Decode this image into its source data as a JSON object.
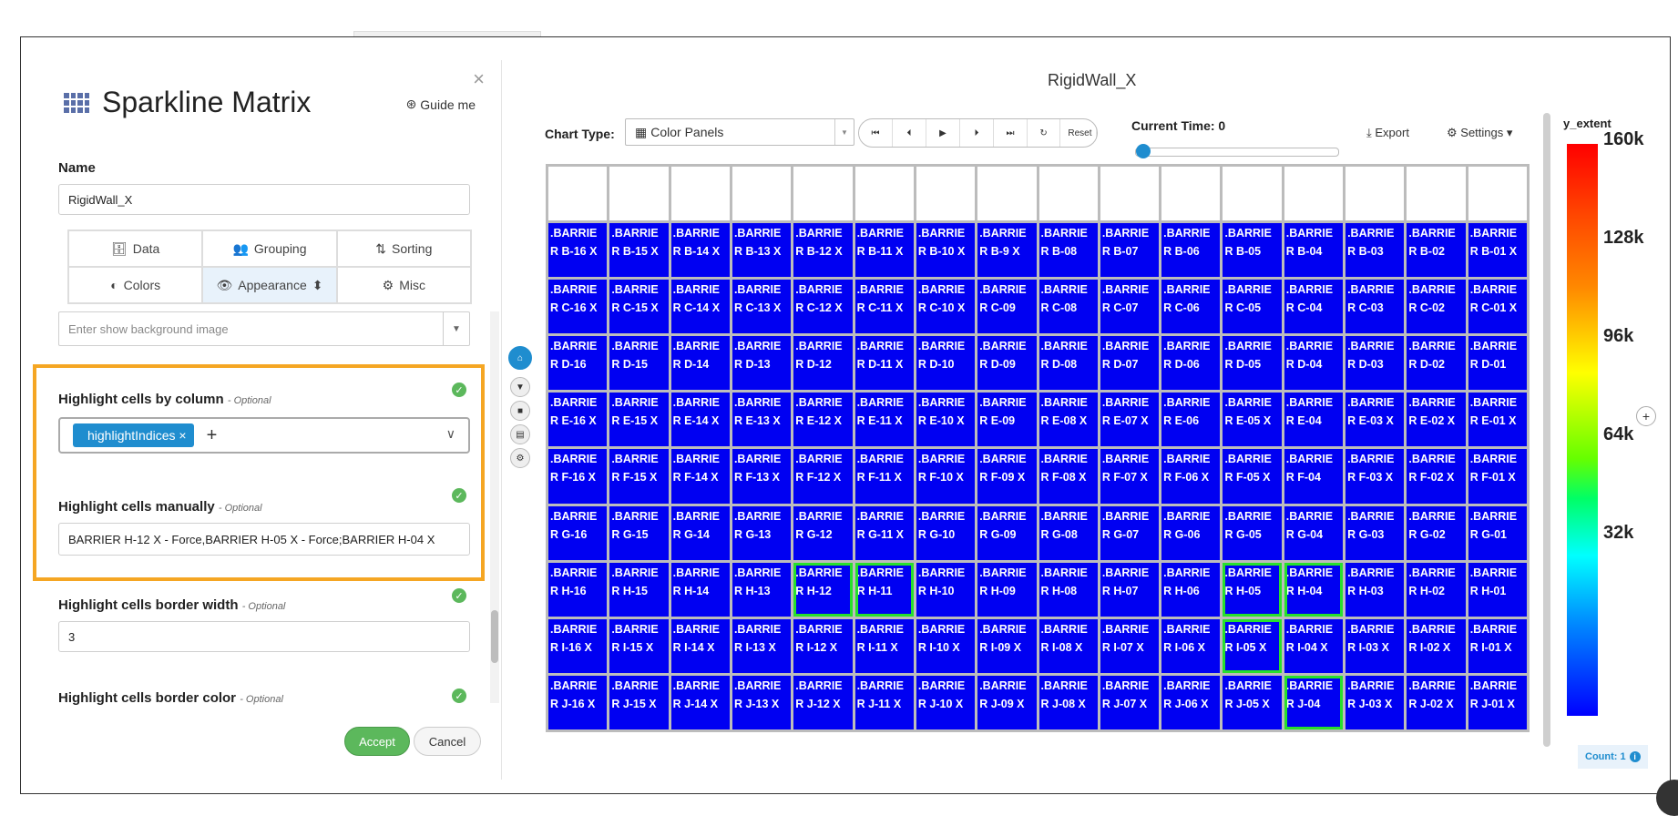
{
  "panel": {
    "title": "Sparkline Matrix",
    "guide_label": "Guide me",
    "close_glyph": "×",
    "name_label": "Name",
    "name_value": "RigidWall_X",
    "tabs": [
      {
        "label": "Data",
        "icon": "database-icon",
        "glyph": "🗄"
      },
      {
        "label": "Grouping",
        "icon": "users-icon",
        "glyph": "👥"
      },
      {
        "label": "Sorting",
        "icon": "sort-icon",
        "glyph": "⇅"
      },
      {
        "label": "Colors",
        "icon": "contrast-icon",
        "glyph": "◐"
      },
      {
        "label": "Appearance",
        "icon": "eye-icon",
        "glyph": "👁"
      },
      {
        "label": "Misc",
        "icon": "gear-icon",
        "glyph": "⚙"
      }
    ],
    "bg_image_placeholder": "Enter show background image",
    "hl_column_label": "Highlight cells by column",
    "hl_column_tag": "highlightIndices",
    "hl_manual_label": "Highlight cells manually",
    "hl_manual_value": "BARRIER H-12 X - Force,BARRIER H-05 X - Force;BARRIER H-04 X",
    "border_width_label": "Highlight cells border width",
    "border_width_value": "3",
    "border_color_label": "Highlight cells border color",
    "optional": "- Optional",
    "accept_label": "Accept",
    "cancel_label": "Cancel"
  },
  "chart": {
    "title": "RigidWall_X",
    "chart_type_label": "Chart Type:",
    "chart_type_value": "Color Panels",
    "reset_label": "Reset",
    "current_time_label": "Current Time: 0",
    "current_time_fraction": 0,
    "export_label": "Export",
    "settings_label": "Settings",
    "cell_fill_color": "#0000f2",
    "highlight_color": "#27e02c",
    "rows": [
      {
        "row": "B",
        "cells": [
          ".BARRIE|R B-16 X",
          ".BARRIE|R B-15 X",
          ".BARRIE|R B-14 X",
          ".BARRIE|R B-13 X",
          ".BARRIE|R B-12 X",
          ".BARRIE|R B-11 X",
          ".BARRIE|R B-10 X",
          ".BARRIE|R B-9 X",
          ".BARRIE|R B-08",
          ".BARRIE|R B-07",
          ".BARRIE|R B-06",
          ".BARRIE|R B-05",
          ".BARRIE|R B-04",
          ".BARRIE|R B-03",
          ".BARRIE|R B-02",
          ".BARRIE|R B-01 X"
        ]
      },
      {
        "row": "C",
        "cells": [
          ".BARRIE|R C-16 X",
          ".BARRIE|R C-15 X",
          ".BARRIE|R C-14 X",
          ".BARRIE|R C-13 X",
          ".BARRIE|R C-12 X",
          ".BARRIE|R C-11 X",
          ".BARRIE|R C-10 X",
          ".BARRIE|R C-09",
          ".BARRIE|R C-08",
          ".BARRIE|R C-07",
          ".BARRIE|R C-06",
          ".BARRIE|R C-05",
          ".BARRIE|R C-04",
          ".BARRIE|R C-03",
          ".BARRIE|R C-02",
          ".BARRIE|R C-01 X"
        ]
      },
      {
        "row": "D",
        "cells": [
          ".BARRIE|R D-16",
          ".BARRIE|R D-15",
          ".BARRIE|R D-14",
          ".BARRIE|R D-13",
          ".BARRIE|R D-12",
          ".BARRIE|R D-11 X",
          ".BARRIE|R D-10",
          ".BARRIE|R D-09",
          ".BARRIE|R D-08",
          ".BARRIE|R D-07",
          ".BARRIE|R D-06",
          ".BARRIE|R D-05",
          ".BARRIE|R D-04",
          ".BARRIE|R D-03",
          ".BARRIE|R D-02",
          ".BARRIE|R D-01"
        ]
      },
      {
        "row": "E",
        "cells": [
          ".BARRIE|R E-16 X",
          ".BARRIE|R E-15 X",
          ".BARRIE|R E-14 X",
          ".BARRIE|R E-13 X",
          ".BARRIE|R E-12 X",
          ".BARRIE|R E-11 X",
          ".BARRIE|R E-10 X",
          ".BARRIE|R E-09",
          ".BARRIE|R E-08 X",
          ".BARRIE|R E-07 X",
          ".BARRIE|R E-06",
          ".BARRIE|R E-05 X",
          ".BARRIE|R E-04",
          ".BARRIE|R E-03 X",
          ".BARRIE|R E-02 X",
          ".BARRIE|R E-01 X"
        ]
      },
      {
        "row": "F",
        "cells": [
          ".BARRIE|R F-16 X",
          ".BARRIE|R F-15 X",
          ".BARRIE|R F-14 X",
          ".BARRIE|R F-13 X",
          ".BARRIE|R F-12 X",
          ".BARRIE|R F-11 X",
          ".BARRIE|R F-10 X",
          ".BARRIE|R F-09 X",
          ".BARRIE|R F-08 X",
          ".BARRIE|R F-07 X",
          ".BARRIE|R F-06 X",
          ".BARRIE|R F-05 X",
          ".BARRIE|R F-04",
          ".BARRIE|R F-03 X",
          ".BARRIE|R F-02 X",
          ".BARRIE|R F-01 X"
        ]
      },
      {
        "row": "G",
        "cells": [
          ".BARRIE|R G-16",
          ".BARRIE|R G-15",
          ".BARRIE|R G-14",
          ".BARRIE|R G-13",
          ".BARRIE|R G-12",
          ".BARRIE|R G-11 X",
          ".BARRIE|R G-10",
          ".BARRIE|R G-09",
          ".BARRIE|R G-08",
          ".BARRIE|R G-07",
          ".BARRIE|R G-06",
          ".BARRIE|R G-05",
          ".BARRIE|R G-04",
          ".BARRIE|R G-03",
          ".BARRIE|R G-02",
          ".BARRIE|R G-01"
        ]
      },
      {
        "row": "H",
        "cells": [
          ".BARRIE|R H-16",
          ".BARRIE|R H-15",
          ".BARRIE|R H-14",
          ".BARRIE|R H-13",
          ".BARRIE|R H-12",
          ".BARRIE|R H-11",
          ".BARRIE|R H-10",
          ".BARRIE|R H-09",
          ".BARRIE|R H-08",
          ".BARRIE|R H-07",
          ".BARRIE|R H-06",
          ".BARRIE|R H-05",
          ".BARRIE|R H-04",
          ".BARRIE|R H-03",
          ".BARRIE|R H-02",
          ".BARRIE|R H-01"
        ]
      },
      {
        "row": "I",
        "cells": [
          ".BARRIE|R I-16 X",
          ".BARRIE|R I-15 X",
          ".BARRIE|R I-14 X",
          ".BARRIE|R I-13 X",
          ".BARRIE|R I-12 X",
          ".BARRIE|R I-11 X",
          ".BARRIE|R I-10 X",
          ".BARRIE|R I-09 X",
          ".BARRIE|R I-08 X",
          ".BARRIE|R I-07 X",
          ".BARRIE|R I-06 X",
          ".BARRIE|R I-05 X",
          ".BARRIE|R I-04 X",
          ".BARRIE|R I-03 X",
          ".BARRIE|R I-02 X",
          ".BARRIE|R I-01 X"
        ]
      },
      {
        "row": "J",
        "cells": [
          ".BARRIE|R J-16 X",
          ".BARRIE|R J-15 X",
          ".BARRIE|R J-14 X",
          ".BARRIE|R J-13 X",
          ".BARRIE|R J-12 X",
          ".BARRIE|R J-11 X",
          ".BARRIE|R J-10 X",
          ".BARRIE|R J-09 X",
          ".BARRIE|R J-08 X",
          ".BARRIE|R J-07 X",
          ".BARRIE|R J-06 X",
          ".BARRIE|R J-05 X",
          ".BARRIE|R J-04",
          ".BARRIE|R J-03 X",
          ".BARRIE|R J-02 X",
          ".BARRIE|R J-01 X"
        ]
      }
    ],
    "highlighted": [
      "H-12",
      "H-11",
      "H-05",
      "H-04",
      "I-05",
      "J-04"
    ]
  },
  "legend": {
    "title": "y_extent",
    "ticks": [
      "160k",
      "128k",
      "96k",
      "64k",
      "32k"
    ],
    "count_label": "Count: 1"
  }
}
